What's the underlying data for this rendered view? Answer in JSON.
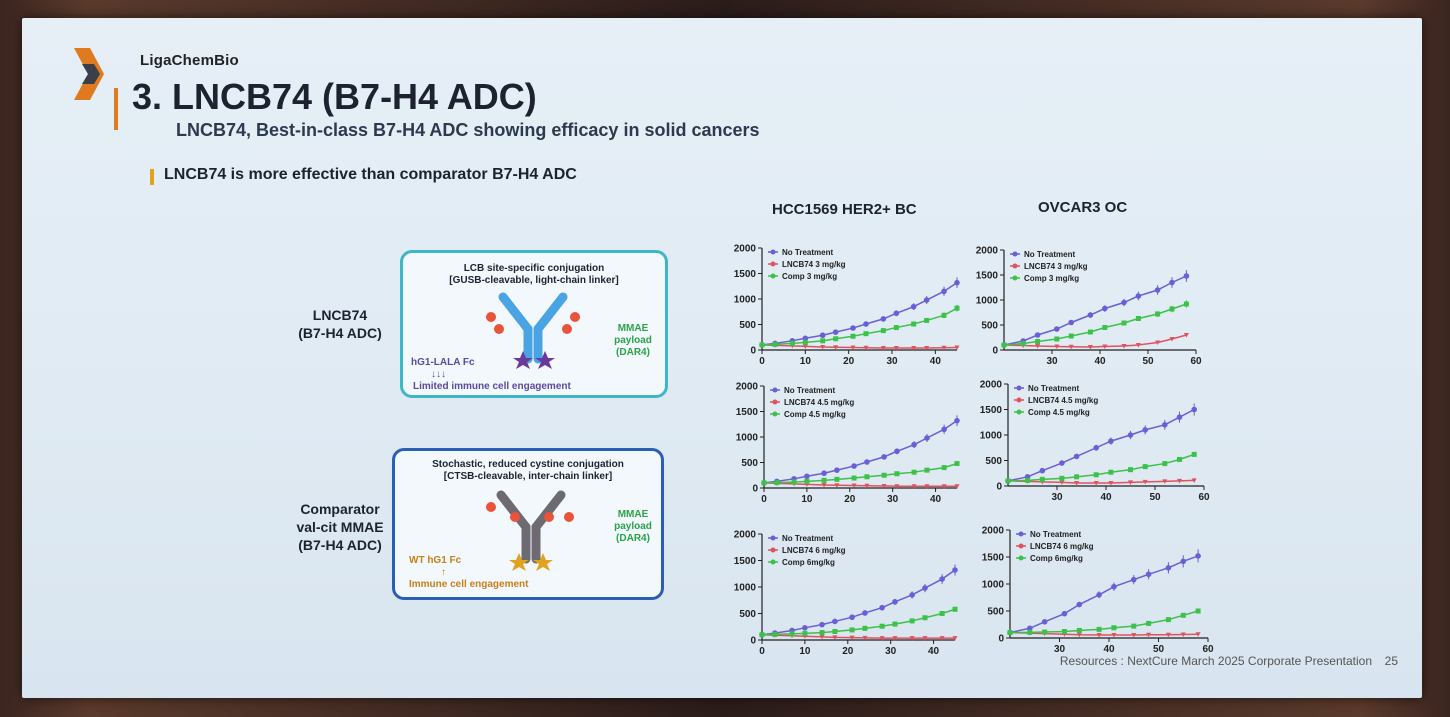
{
  "header": {
    "brand": "LigaChemBio",
    "title": "3. LNCB74 (B7-H4 ADC)",
    "subtitle": "LNCB74, Best-in-class B7-H4 ADC showing efficacy in solid cancers",
    "point": "LNCB74 is more effective than comparator B7-H4 ADC"
  },
  "rows": {
    "lncb74": {
      "label_line1": "LNCB74",
      "label_line2": "(B7-H4 ADC)",
      "card_line1": "LCB site-specific conjugation",
      "card_line2": "[GUSB-cleavable, light-chain linker]",
      "payload_line1": "MMAE",
      "payload_line2": "payload",
      "payload_line3": "(DAR4)",
      "fc_label": "hG1-LALA Fc",
      "arrows": "↓↓↓",
      "engagement": "Limited immune cell engagement"
    },
    "comparator": {
      "label_line1": "Comparator",
      "label_line2": "val-cit MMAE",
      "label_line3": "(B7-H4 ADC)",
      "card_line1": "Stochastic, reduced cystine conjugation",
      "card_line2": "[CTSB-cleavable, inter-chain linker]",
      "payload_line1": "MMAE",
      "payload_line2": "payload",
      "payload_line3": "(DAR4)",
      "fc_label": "WT hG1 Fc",
      "arrows": "↑",
      "engagement": "Immune cell engagement"
    }
  },
  "columns": [
    "HCC1569 HER2+ BC",
    "OVCAR3 OC"
  ],
  "colors": {
    "no_treatment": "#6a5fd6",
    "lncb74": "#e0525e",
    "comp": "#3cc24a",
    "accent_orange": "#e07a1f",
    "card_teal": "#3fb6c6",
    "card_blue": "#2a5fb8"
  },
  "footer": {
    "resources": "Resources : NextCure March 2025 Corporate Presentation",
    "page": "25"
  },
  "chart_data": [
    {
      "type": "line",
      "panel": "HCC1569 3 mg/kg",
      "xlim": [
        0,
        45
      ],
      "ylim": [
        0,
        2000
      ],
      "xticks": [
        0,
        10,
        20,
        30,
        40
      ],
      "yticks": [
        0,
        500,
        1000,
        1500,
        2000
      ],
      "series": [
        {
          "name": "No Treatment",
          "x": [
            0,
            3,
            7,
            10,
            14,
            17,
            21,
            24,
            28,
            31,
            35,
            38,
            42,
            45
          ],
          "y": [
            100,
            130,
            180,
            230,
            290,
            350,
            430,
            510,
            610,
            720,
            850,
            980,
            1150,
            1320
          ]
        },
        {
          "name": "LNCB74 3 mg/kg",
          "x": [
            0,
            3,
            7,
            10,
            14,
            17,
            21,
            24,
            28,
            31,
            35,
            38,
            42,
            45
          ],
          "y": [
            100,
            90,
            80,
            70,
            60,
            55,
            50,
            45,
            40,
            40,
            40,
            40,
            45,
            50
          ]
        },
        {
          "name": "Comp 3 mg/kg",
          "x": [
            0,
            3,
            7,
            10,
            14,
            17,
            21,
            24,
            28,
            31,
            35,
            38,
            42,
            45
          ],
          "y": [
            100,
            110,
            130,
            150,
            180,
            220,
            270,
            320,
            380,
            440,
            510,
            580,
            680,
            820
          ]
        }
      ]
    },
    {
      "type": "line",
      "panel": "OVCAR3 3 mg/kg",
      "xlim": [
        20,
        60
      ],
      "ylim": [
        0,
        2000
      ],
      "xticks": [
        30,
        40,
        50,
        60
      ],
      "yticks": [
        0,
        500,
        1000,
        1500,
        2000
      ],
      "series": [
        {
          "name": "No Treatment",
          "x": [
            20,
            24,
            27,
            31,
            34,
            38,
            41,
            45,
            48,
            52,
            55,
            58
          ],
          "y": [
            100,
            180,
            300,
            420,
            550,
            700,
            830,
            950,
            1080,
            1200,
            1350,
            1480
          ]
        },
        {
          "name": "LNCB74 3 mg/kg",
          "x": [
            20,
            24,
            27,
            31,
            34,
            38,
            41,
            45,
            48,
            52,
            55,
            58
          ],
          "y": [
            100,
            90,
            80,
            70,
            65,
            60,
            70,
            80,
            100,
            150,
            220,
            300
          ]
        },
        {
          "name": "Comp 3 mg/kg",
          "x": [
            20,
            24,
            27,
            31,
            34,
            38,
            41,
            45,
            48,
            52,
            55,
            58
          ],
          "y": [
            100,
            130,
            170,
            220,
            280,
            360,
            450,
            540,
            630,
            720,
            820,
            920
          ]
        }
      ]
    },
    {
      "type": "line",
      "panel": "HCC1569 4.5 mg/kg",
      "xlim": [
        0,
        45
      ],
      "ylim": [
        0,
        2000
      ],
      "xticks": [
        0,
        10,
        20,
        30,
        40
      ],
      "yticks": [
        0,
        500,
        1000,
        1500,
        2000
      ],
      "series": [
        {
          "name": "No Treatment",
          "x": [
            0,
            3,
            7,
            10,
            14,
            17,
            21,
            24,
            28,
            31,
            35,
            38,
            42,
            45
          ],
          "y": [
            100,
            130,
            180,
            230,
            290,
            350,
            430,
            510,
            610,
            720,
            850,
            980,
            1150,
            1320
          ]
        },
        {
          "name": "LNCB74 4.5 mg/kg",
          "x": [
            0,
            3,
            7,
            10,
            14,
            17,
            21,
            24,
            28,
            31,
            35,
            38,
            42,
            45
          ],
          "y": [
            100,
            90,
            80,
            70,
            60,
            55,
            50,
            45,
            40,
            35,
            35,
            35,
            35,
            35
          ]
        },
        {
          "name": "Comp 4.5 mg/kg",
          "x": [
            0,
            3,
            7,
            10,
            14,
            17,
            21,
            24,
            28,
            31,
            35,
            38,
            42,
            45
          ],
          "y": [
            100,
            105,
            115,
            130,
            150,
            170,
            195,
            220,
            250,
            280,
            310,
            350,
            400,
            480
          ]
        }
      ]
    },
    {
      "type": "line",
      "panel": "OVCAR3 4.5 mg/kg",
      "xlim": [
        20,
        60
      ],
      "ylim": [
        0,
        2000
      ],
      "xticks": [
        30,
        40,
        50,
        60
      ],
      "yticks": [
        0,
        500,
        1000,
        1500,
        2000
      ],
      "series": [
        {
          "name": "No Treatment",
          "x": [
            20,
            24,
            27,
            31,
            34,
            38,
            41,
            45,
            48,
            52,
            55,
            58
          ],
          "y": [
            100,
            180,
            300,
            450,
            580,
            750,
            880,
            1000,
            1100,
            1200,
            1350,
            1500
          ]
        },
        {
          "name": "LNCB74 4.5 mg/kg",
          "x": [
            20,
            24,
            27,
            31,
            34,
            38,
            41,
            45,
            48,
            52,
            55,
            58
          ],
          "y": [
            100,
            90,
            80,
            70,
            60,
            60,
            60,
            70,
            80,
            90,
            100,
            110
          ]
        },
        {
          "name": "Comp 4.5 mg/kg",
          "x": [
            20,
            24,
            27,
            31,
            34,
            38,
            41,
            45,
            48,
            52,
            55,
            58
          ],
          "y": [
            100,
            110,
            130,
            150,
            180,
            220,
            270,
            320,
            380,
            440,
            520,
            620
          ]
        }
      ]
    },
    {
      "type": "line",
      "panel": "HCC1569 6 mg/kg",
      "xlim": [
        0,
        45
      ],
      "ylim": [
        0,
        2000
      ],
      "xticks": [
        0,
        10,
        20,
        30,
        40
      ],
      "yticks": [
        0,
        500,
        1000,
        1500,
        2000
      ],
      "series": [
        {
          "name": "No Treatment",
          "x": [
            0,
            3,
            7,
            10,
            14,
            17,
            21,
            24,
            28,
            31,
            35,
            38,
            42,
            45
          ],
          "y": [
            100,
            130,
            180,
            230,
            290,
            350,
            430,
            510,
            610,
            720,
            850,
            980,
            1150,
            1320
          ]
        },
        {
          "name": "LNCB74 6 mg/kg",
          "x": [
            0,
            3,
            7,
            10,
            14,
            17,
            21,
            24,
            28,
            31,
            35,
            38,
            42,
            45
          ],
          "y": [
            100,
            90,
            80,
            70,
            60,
            50,
            45,
            40,
            35,
            35,
            35,
            35,
            35,
            35
          ]
        },
        {
          "name": "Comp 6mg/kg",
          "x": [
            0,
            3,
            7,
            10,
            14,
            17,
            21,
            24,
            28,
            31,
            35,
            38,
            42,
            45
          ],
          "y": [
            100,
            105,
            115,
            125,
            140,
            160,
            190,
            220,
            260,
            300,
            360,
            420,
            500,
            580
          ]
        }
      ]
    },
    {
      "type": "line",
      "panel": "OVCAR3 6 mg/kg",
      "xlim": [
        20,
        60
      ],
      "ylim": [
        0,
        2000
      ],
      "xticks": [
        30,
        40,
        50,
        60
      ],
      "yticks": [
        0,
        500,
        1000,
        1500,
        2000
      ],
      "series": [
        {
          "name": "No Treatment",
          "x": [
            20,
            24,
            27,
            31,
            34,
            38,
            41,
            45,
            48,
            52,
            55,
            58
          ],
          "y": [
            100,
            180,
            300,
            450,
            620,
            800,
            950,
            1080,
            1180,
            1300,
            1420,
            1520
          ]
        },
        {
          "name": "LNCB74 6 mg/kg",
          "x": [
            20,
            24,
            27,
            31,
            34,
            38,
            41,
            45,
            48,
            52,
            55,
            58
          ],
          "y": [
            100,
            90,
            80,
            70,
            60,
            55,
            55,
            55,
            60,
            60,
            65,
            70
          ]
        },
        {
          "name": "Comp 6mg/kg",
          "x": [
            20,
            24,
            27,
            31,
            34,
            38,
            41,
            45,
            48,
            52,
            55,
            58
          ],
          "y": [
            100,
            105,
            110,
            120,
            140,
            160,
            190,
            220,
            270,
            340,
            420,
            500
          ]
        }
      ]
    }
  ]
}
